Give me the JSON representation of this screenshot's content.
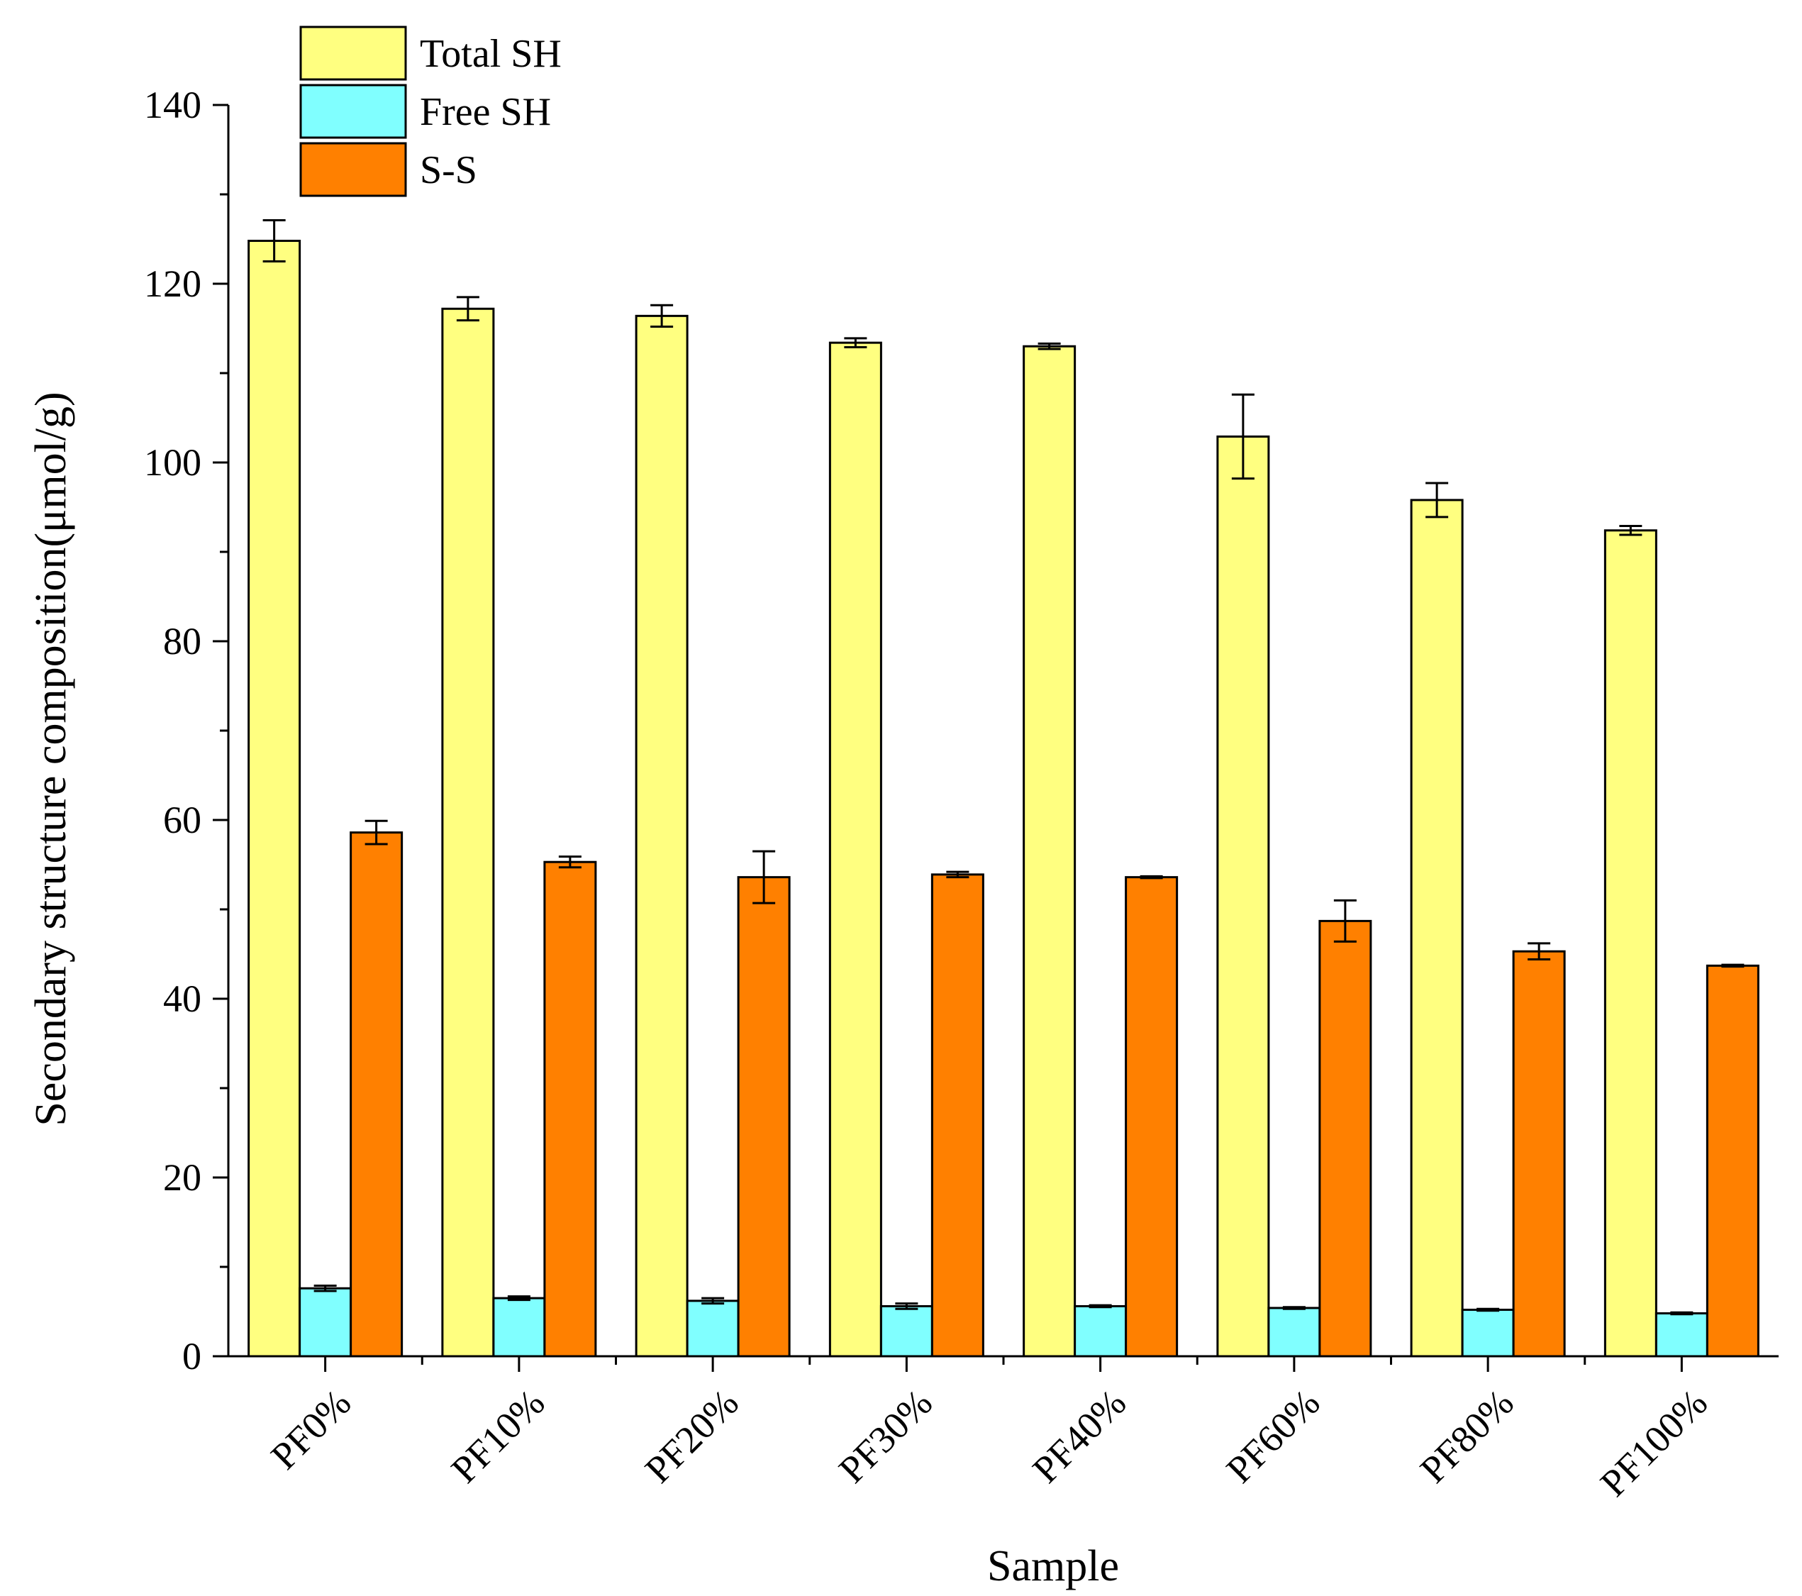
{
  "chart_data": {
    "type": "bar",
    "xlabel": "Sample",
    "ylabel": "Secondary structure composition(μmol/g)",
    "ylim": [
      0,
      140
    ],
    "yticks": [
      0,
      20,
      40,
      60,
      80,
      100,
      120,
      140
    ],
    "categories": [
      "PF0%",
      "PF10%",
      "PF20%",
      "PF30%",
      "PF40%",
      "PF60%",
      "PF80%",
      "PF100%"
    ],
    "series": [
      {
        "name": "Total SH",
        "color": "#FFFF80",
        "values": [
          124.8,
          117.2,
          116.4,
          113.4,
          113.0,
          102.9,
          95.8,
          92.4
        ],
        "errors": [
          2.3,
          1.3,
          1.2,
          0.5,
          0.3,
          4.7,
          1.9,
          0.5
        ]
      },
      {
        "name": "Free SH",
        "color": "#80FFFF",
        "values": [
          7.6,
          6.5,
          6.2,
          5.6,
          5.6,
          5.4,
          5.2,
          4.8
        ],
        "errors": [
          0.3,
          0.2,
          0.3,
          0.3,
          0.1,
          0.1,
          0.1,
          0.1
        ]
      },
      {
        "name": "S-S",
        "color": "#FF8000",
        "values": [
          58.6,
          55.3,
          53.6,
          53.9,
          53.6,
          48.7,
          45.3,
          43.7
        ],
        "errors": [
          1.3,
          0.6,
          2.9,
          0.3,
          0.1,
          2.3,
          0.9,
          0.1
        ]
      }
    ],
    "legend": "top-left"
  }
}
